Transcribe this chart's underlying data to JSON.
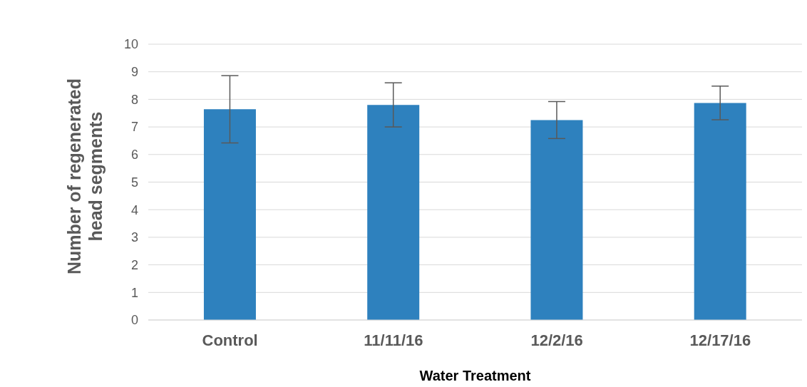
{
  "chart_data": {
    "type": "bar",
    "xlabel": "Water Treatment",
    "ylabel": "Number of regenerated head segments",
    "categories": [
      "Control",
      "11/11/16",
      "12/2/16",
      "12/17/16"
    ],
    "values": [
      7.64,
      7.8,
      7.25,
      7.87
    ],
    "errors": [
      1.22,
      0.8,
      0.67,
      0.61
    ],
    "color": "#2e81be",
    "ylim": [
      0,
      10
    ],
    "yticks": [
      0,
      1,
      2,
      3,
      4,
      5,
      6,
      7,
      8,
      9,
      10
    ],
    "grid": "y"
  }
}
